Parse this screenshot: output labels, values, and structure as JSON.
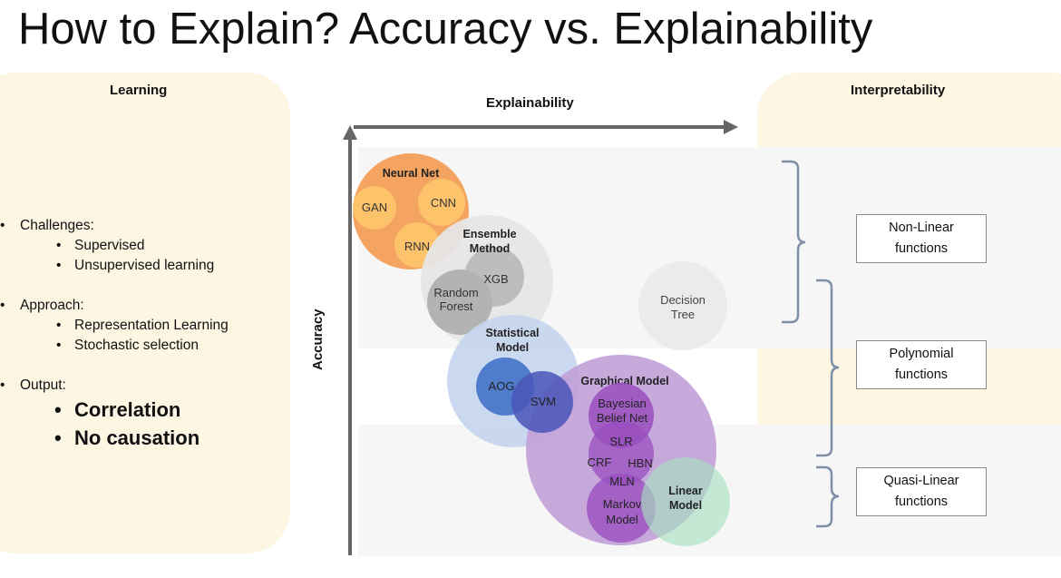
{
  "title": "How to Explain? Accuracy vs. Explainability",
  "left_panel": {
    "heading": "Learning",
    "challenges": {
      "label": "Challenges:",
      "items": [
        "Supervised",
        "Unsupervised learning"
      ]
    },
    "approach": {
      "label": "Approach:",
      "items": [
        "Representation Learning",
        "Stochastic selection"
      ]
    },
    "output": {
      "label": "Output:",
      "items": [
        "Correlation",
        "No causation"
      ]
    }
  },
  "right_panel": {
    "heading": "Interpretability",
    "boxes": [
      {
        "line1": "Non-Linear",
        "line2": "functions"
      },
      {
        "line1": "Polynomial",
        "line2": "functions"
      },
      {
        "line1": "Quasi-Linear",
        "line2": "functions"
      }
    ]
  },
  "axes": {
    "x_label": "Explainability",
    "y_label": "Accuracy"
  },
  "groups": {
    "neural_net": {
      "label": "Neural Net",
      "color": "#f4a460",
      "members": [
        "GAN",
        "CNN",
        "RNN"
      ]
    },
    "ensemble": {
      "label_line1": "Ensemble",
      "label_line2": "Method",
      "color": "#e8e8e8",
      "members": [
        "XGB",
        "Random",
        "Forest"
      ]
    },
    "statistical": {
      "label_line1": "Statistical",
      "label_line2": "Model",
      "color": "#c5d5ee",
      "members": [
        "AOG",
        "SVM"
      ]
    },
    "graphical": {
      "label": "Graphical Model",
      "color": "#c6a6dc",
      "members": [
        "Bayesian",
        "Belief Net",
        "SLR",
        "CRF",
        "HBN",
        "MLN",
        "Markov",
        "Model"
      ]
    },
    "linear": {
      "label_line1": "Linear",
      "label_line2": "Model",
      "color": "#a8e0c0"
    },
    "decision_tree": {
      "label_line1": "Decision",
      "label_line2": "Tree",
      "color": "#ebebeb"
    }
  }
}
